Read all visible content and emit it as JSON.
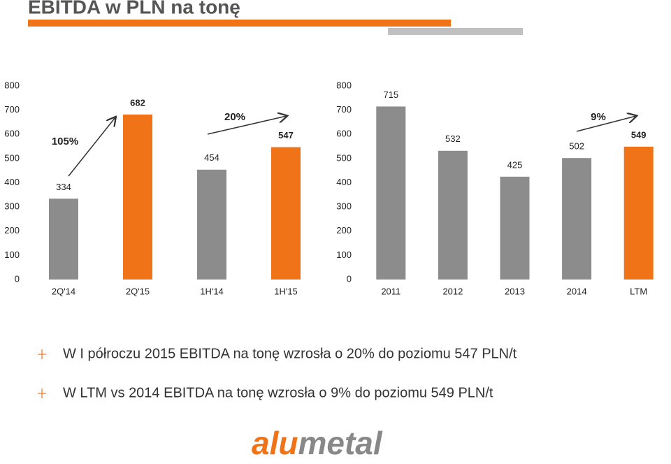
{
  "title": "EBITDA w PLN na tonę",
  "chart_data": [
    {
      "type": "bar",
      "categories": [
        "2Q'14",
        "2Q'15",
        "1H'14",
        "1H'15"
      ],
      "values": [
        334,
        682,
        454,
        547
      ],
      "colors": [
        "#8c8c8c",
        "#f07317",
        "#8c8c8c",
        "#f07317"
      ],
      "annotations": [
        "105%",
        "20%"
      ],
      "ylim": [
        0,
        800
      ],
      "yticks": [
        0,
        100,
        200,
        300,
        400,
        500,
        600,
        700,
        800
      ],
      "grid": false
    },
    {
      "type": "bar",
      "categories": [
        "2011",
        "2012",
        "2013",
        "2014",
        "LTM"
      ],
      "values": [
        715,
        532,
        425,
        502,
        549
      ],
      "colors": [
        "#8c8c8c",
        "#8c8c8c",
        "#8c8c8c",
        "#8c8c8c",
        "#f07317"
      ],
      "annotations": [
        "9%"
      ],
      "ylim": [
        0,
        800
      ],
      "yticks": [
        0,
        100,
        200,
        300,
        400,
        500,
        600,
        700,
        800
      ],
      "grid": false
    }
  ],
  "bullets": [
    "W I półroczu 2015 EBITDA na tonę wzrosła o 20% do poziomu 547 PLN/t",
    "W LTM vs 2014  EBITDA na tonę wzrosła o 9% do poziomu 549 PLN/t"
  ],
  "logo": [
    "alu",
    "metal"
  ]
}
